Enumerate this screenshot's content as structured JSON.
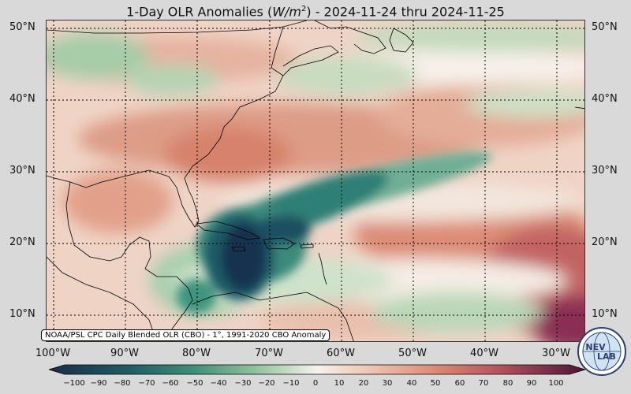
{
  "title": {
    "prefix": "1-Day OLR Anomalies (",
    "unit_main": "W/m",
    "unit_exp": "2",
    "suffix": ") - 2024-11-24 thru 2024-11-25"
  },
  "map": {
    "lat_labels": [
      "50°N",
      "40°N",
      "30°N",
      "20°N",
      "10°N"
    ],
    "lon_labels": [
      "100°W",
      "90°W",
      "80°W",
      "70°W",
      "60°W",
      "50°W",
      "40°W",
      "30°W"
    ],
    "source_text": "NOAA/PSL CPC Daily Blended OLR (CBO) - 1°, 1991-2020 CBO Anomaly"
  },
  "colorbar": {
    "ticks": [
      "−100",
      "−90",
      "−80",
      "−70",
      "−60",
      "−50",
      "−40",
      "−30",
      "−20",
      "−10",
      "0",
      "10",
      "20",
      "30",
      "40",
      "50",
      "60",
      "70",
      "80",
      "90",
      "100"
    ],
    "colors": {
      "negative_extreme": "#1a2a4a",
      "negative_strong": "#1f5e63",
      "negative_mid": "#3f8f78",
      "negative_weak": "#9cc8a4",
      "neutral": "#f7f2ee",
      "positive_weak": "#eec4b0",
      "positive_mid": "#d98670",
      "positive_strong": "#b04e5c",
      "positive_extreme": "#4a1438"
    }
  },
  "logo": {
    "text_top": "NEV",
    "text_bottom": "LAB",
    "icon": "nevlab-globe-logo"
  }
}
